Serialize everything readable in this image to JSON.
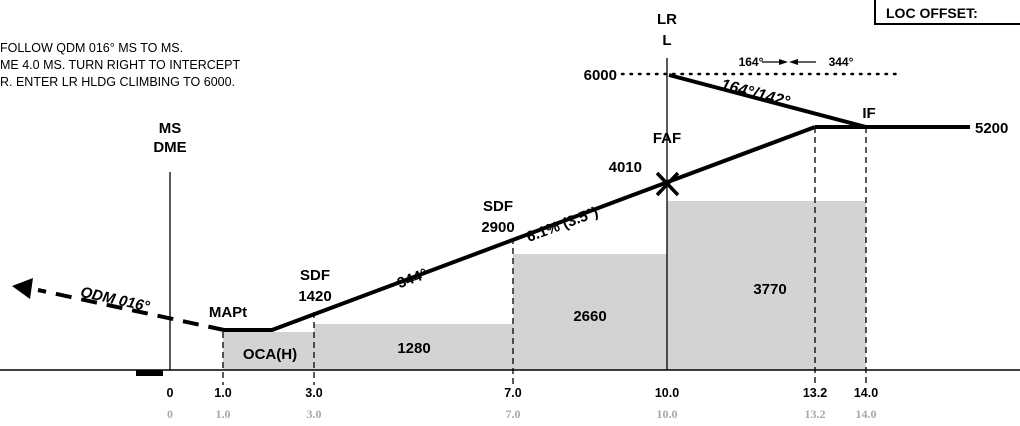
{
  "header": {
    "loc_offset_label": "LOC OFFSET:"
  },
  "instructions": [
    "FOLLOW QDM 016° MS  TO MS.",
    "ME 4.0 MS. TURN RIGHT  TO INTERCEPT",
    "R. ENTER LR HLDG CLIMBING TO 6000."
  ],
  "facilities": {
    "ms_line1": "MS",
    "ms_line2": "DME",
    "lr_line1": "LR",
    "lr_line2": "L"
  },
  "altitudes": {
    "holding": "6000",
    "intermediate": "5200",
    "faf": "4010",
    "sdf2": "2900",
    "sdf1": "1420"
  },
  "fix_labels": {
    "faf": "FAF",
    "if": "IF",
    "sdf2": "SDF",
    "sdf1": "SDF",
    "mapt": "MAPt"
  },
  "tracks": {
    "holding_inbound": "164°",
    "holding_outbound": "344°",
    "intermediate_segment": "164°/142°",
    "final_slope": "6.1% (3.5°)",
    "final_track": "344°",
    "missed_approach": "QDM 016°"
  },
  "minimums": {
    "oca_label": "OCA(H)",
    "oca_value": "",
    "segment_1": "1280",
    "segment_2": "2660",
    "segment_3": "3770"
  },
  "distances": {
    "primary": [
      "0",
      "1.0",
      "3.0",
      "7.0",
      "10.0",
      "13.2",
      "14.0"
    ],
    "secondary": [
      "0",
      "1.0",
      "3.0",
      "7.0",
      "10.0",
      "13.2",
      "14.0"
    ]
  },
  "colors": {
    "ink": "#000000",
    "shade": "#d3d3d3",
    "grey_text": "#a8a8a8"
  }
}
